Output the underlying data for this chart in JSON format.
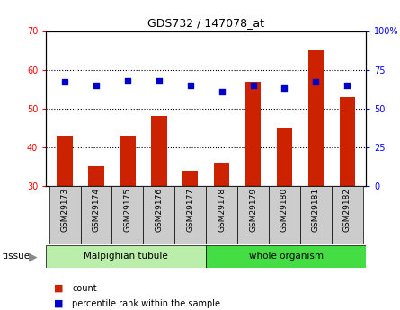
{
  "title": "GDS732 / 147078_at",
  "categories": [
    "GSM29173",
    "GSM29174",
    "GSM29175",
    "GSM29176",
    "GSM29177",
    "GSM29178",
    "GSM29179",
    "GSM29180",
    "GSM29181",
    "GSM29182"
  ],
  "counts": [
    43,
    35,
    43,
    48,
    34,
    36,
    57,
    45,
    65,
    53
  ],
  "percentiles": [
    67,
    65,
    68,
    68,
    65,
    61,
    65,
    63,
    67,
    65
  ],
  "ylim_left": [
    30,
    70
  ],
  "ylim_right": [
    0,
    100
  ],
  "yticks_left": [
    30,
    40,
    50,
    60,
    70
  ],
  "yticks_right": [
    0,
    25,
    50,
    75,
    100
  ],
  "bar_color": "#cc2200",
  "dot_color": "#0000cc",
  "bar_bottom": 30,
  "tissue_groups": [
    {
      "label": "Malpighian tubule",
      "start": 0,
      "end": 5,
      "color": "#bbeeaa"
    },
    {
      "label": "whole organism",
      "start": 5,
      "end": 10,
      "color": "#44dd44"
    }
  ],
  "legend_items": [
    {
      "label": "count",
      "color": "#cc2200"
    },
    {
      "label": "percentile rank within the sample",
      "color": "#0000cc"
    }
  ],
  "background_color": "#ffffff",
  "label_bg": "#cccccc",
  "grid_color": "#000000"
}
